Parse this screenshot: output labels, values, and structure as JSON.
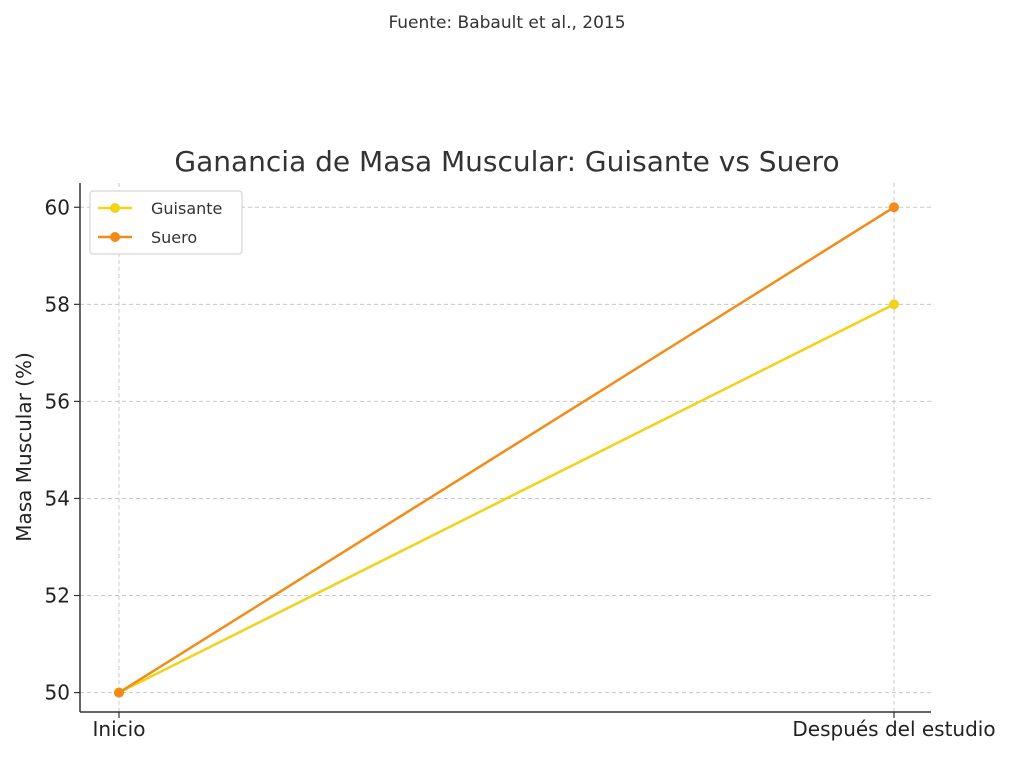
{
  "chart_data": {
    "type": "line",
    "source": "Fuente: Babault et al., 2015",
    "title": "Ganancia de Masa Muscular: Guisante vs Suero",
    "xlabel": "",
    "ylabel": "Masa Muscular (%)",
    "categories": [
      "Inicio",
      "Después del estudio"
    ],
    "series": [
      {
        "name": "Guisante",
        "values": [
          50,
          58
        ],
        "color": "#f2d21b"
      },
      {
        "name": "Suero",
        "values": [
          50,
          60
        ],
        "color": "#f28c18"
      }
    ],
    "ylim": [
      49.6,
      60.5
    ],
    "yticks": [
      "50",
      "52",
      "54",
      "56",
      "58",
      "60"
    ],
    "grid": true,
    "legend_position": "top-left"
  }
}
